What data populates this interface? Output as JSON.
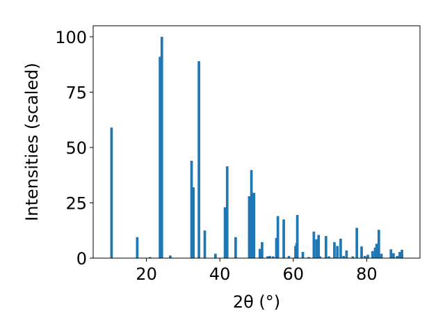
{
  "chart_data": {
    "type": "bar",
    "xlabel": "2θ (°)",
    "ylabel": "Intensities (scaled)",
    "xlim": [
      5.5,
      94.5
    ],
    "ylim": [
      0,
      105
    ],
    "xticks": [
      20,
      40,
      60,
      80
    ],
    "yticks": [
      0,
      25,
      50,
      75,
      100
    ],
    "bar_color": "#1f77b4",
    "bar_width": 0.7,
    "grid": false,
    "x": [
      10.5,
      17.5,
      21.0,
      23.7,
      24.2,
      26.5,
      32.3,
      32.8,
      34.3,
      35.9,
      38.8,
      41.4,
      42.0,
      44.3,
      48.0,
      48.6,
      49.3,
      50.9,
      51.5,
      53.0,
      53.6,
      54.5,
      55.4,
      55.8,
      57.4,
      58.8,
      60.6,
      60.9,
      61.1,
      62.6,
      64.2,
      65.6,
      66.3,
      66.9,
      67.3,
      68.9,
      69.7,
      71.2,
      72.0,
      72.9,
      73.7,
      74.5,
      76.2,
      77.3,
      78.6,
      79.5,
      80.3,
      81.6,
      82.3,
      82.7,
      83.3,
      84.0,
      86.6,
      87.3,
      88.3,
      89.0,
      89.6
    ],
    "values": [
      59,
      9.5,
      0.5,
      91,
      100,
      1.2,
      44,
      32,
      89,
      12.5,
      2,
      23,
      41.5,
      9.5,
      28,
      39.8,
      29.5,
      4.2,
      7.2,
      0.8,
      1,
      0.8,
      9.1,
      19,
      17.5,
      1,
      5.5,
      6.8,
      19.5,
      2.8,
      0.5,
      12,
      8.5,
      10.5,
      0.8,
      10,
      0.8,
      7.2,
      5.5,
      8.8,
      1,
      3.5,
      0.8,
      13.7,
      5.3,
      1,
      1.5,
      3.2,
      4.8,
      6.5,
      12.8,
      2,
      4,
      2.2,
      1,
      2.8,
      3.8
    ]
  }
}
